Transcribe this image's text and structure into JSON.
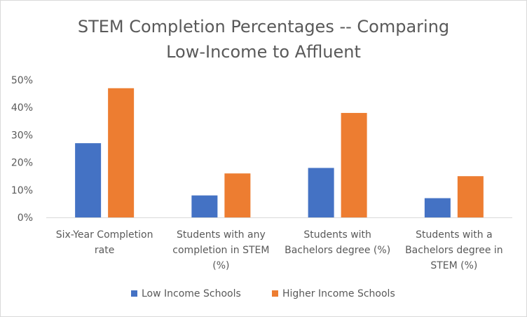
{
  "chart_data": {
    "type": "bar",
    "title_lines": [
      "STEM Completion Percentages -- Comparing",
      "Low-Income to Affluent"
    ],
    "categories": [
      [
        "Six-Year Completion",
        "rate"
      ],
      [
        "Students with any",
        "completion in STEM",
        "(%)"
      ],
      [
        "Students with",
        "Bachelors degree (%)"
      ],
      [
        "Students with a",
        "Bachelors degree in",
        "STEM (%)"
      ]
    ],
    "series": [
      {
        "name": "Low Income Schools",
        "color": "#4472c4",
        "values": [
          27,
          8,
          18,
          7
        ]
      },
      {
        "name": "Higher Income Schools",
        "color": "#ed7d31",
        "values": [
          47,
          16,
          38,
          15
        ]
      }
    ],
    "ylim": [
      0,
      50
    ],
    "yticks": [
      0,
      10,
      20,
      30,
      40,
      50
    ],
    "ytick_labels": [
      "0%",
      "10%",
      "20%",
      "30%",
      "40%",
      "50%"
    ],
    "grid": false,
    "legend_position": "bottom"
  }
}
